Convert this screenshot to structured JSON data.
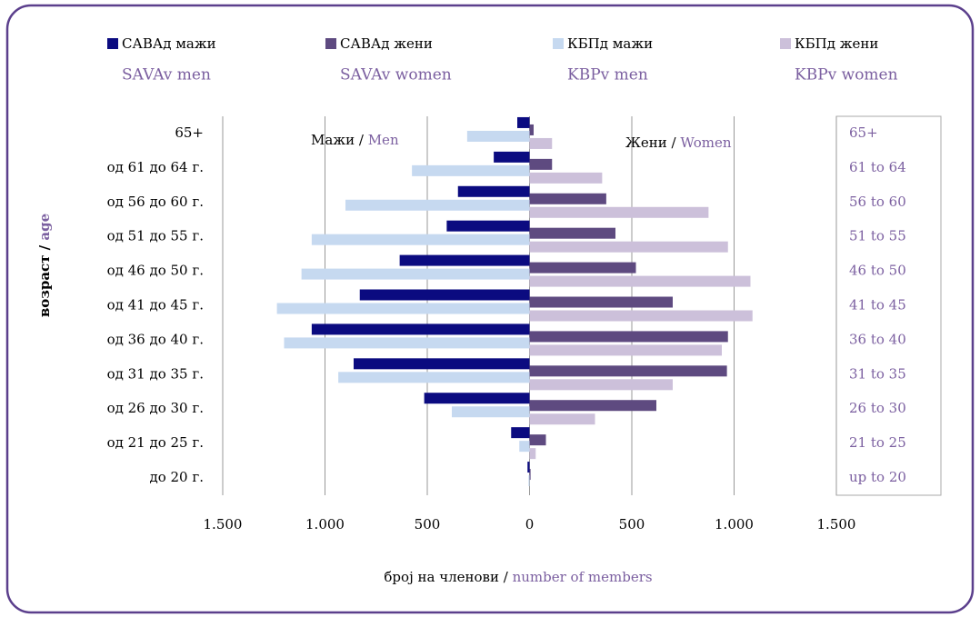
{
  "chart_data": {
    "type": "bar",
    "orientation": "horizontal",
    "categories": [
      "65+",
      "од 61 до 64 г.",
      "од 56 до 60 г.",
      "од 51 до 55 г.",
      "од 46 до 50 г.",
      "од 41 до 45 г.",
      "од 36 до 40 г.",
      "од 31 до 35 г.",
      "од 26 до 30 г.",
      "од 21 до 25 г.",
      "до 20 г."
    ],
    "categories_en": [
      "65+",
      "61 to 64",
      "56 to 60",
      "51 to 55",
      "46 to 50",
      "41 to 45",
      "36 to 40",
      "31 to 35",
      "26 to 30",
      "21 to 25",
      "up to 20"
    ],
    "series": [
      {
        "name": "САВАд мажи",
        "name_en": "SAVAv men",
        "color": "#0b0b80",
        "values": [
          -60,
          -175,
          -350,
          -405,
          -635,
          -830,
          -1065,
          -860,
          -515,
          -90,
          -10
        ]
      },
      {
        "name": "САВАд жени",
        "name_en": "SAVAv women",
        "color": "#5e4a80",
        "values": [
          20,
          110,
          375,
          420,
          520,
          700,
          970,
          965,
          620,
          80,
          5
        ]
      },
      {
        "name": "КБПд мажи",
        "name_en": "KBPv men",
        "color": "#c6d9f0",
        "values": [
          -305,
          -575,
          -900,
          -1065,
          -1115,
          -1235,
          -1200,
          -935,
          -380,
          -50,
          -5
        ]
      },
      {
        "name": "КБПд жени",
        "name_en": "KBPv women",
        "color": "#ccc0da",
        "values": [
          110,
          355,
          875,
          970,
          1080,
          1090,
          940,
          700,
          320,
          30,
          0
        ]
      }
    ],
    "xlim": [
      -1500,
      1500
    ],
    "xticks": [
      {
        "value": -1500,
        "label": "1.500"
      },
      {
        "value": -1000,
        "label": "1.000"
      },
      {
        "value": -500,
        "label": "500"
      },
      0,
      500,
      {
        "value": 1000,
        "label": "1.000"
      },
      {
        "value": 1500,
        "label": "1.500"
      }
    ],
    "grid": true,
    "annotations": [
      {
        "text": "Мажи /",
        "en": "Men"
      },
      {
        "text": "Жени /",
        "en": "Women"
      }
    ],
    "xlabel": {
      "text": "број на членови /",
      "en": "number of members"
    },
    "ylabel": {
      "text": "возраст /",
      "en": "age"
    }
  }
}
